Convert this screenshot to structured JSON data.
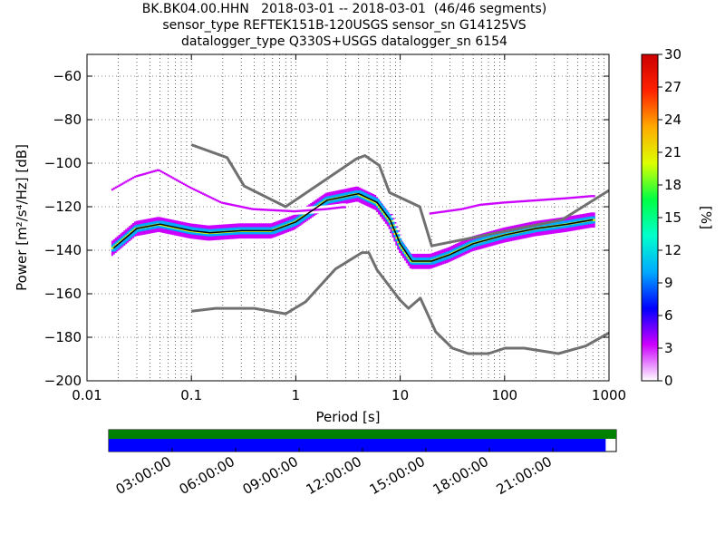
{
  "header": {
    "line1": "BK.BK04.00.HHN   2018-03-01 -- 2018-03-01  (46/46 segments)",
    "line2": "sensor_type REFTEK151B-120USGS sensor_sn G14125VS",
    "line3": "datalogger_type Q330S+USGS datalogger_sn 6154"
  },
  "chart_data": [
    {
      "type": "heatmap",
      "title": "BK.BK04.00.HHN   2018-03-01 -- 2018-03-01  (46/46 segments)",
      "xlabel": "Period [s]",
      "ylabel": "Power [m²/s⁴/Hz] [dB]",
      "xscale": "log",
      "xlim": [
        0.01,
        1000
      ],
      "ylim": [
        -200,
        -50
      ],
      "xticks": [
        0.01,
        0.1,
        1,
        10,
        100,
        1000
      ],
      "xtick_labels": [
        "0.01",
        "0.1",
        "1",
        "10",
        "100",
        "1000"
      ],
      "yticks": [
        -200,
        -180,
        -160,
        -140,
        -120,
        -100,
        -80,
        -60
      ],
      "ytick_labels": [
        "−200",
        "−180",
        "−160",
        "−140",
        "−120",
        "−100",
        "−80",
        "−60"
      ],
      "colorbar": {
        "label": "[%]",
        "range": [
          0,
          30
        ],
        "ticks": [
          0,
          3,
          6,
          9,
          12,
          15,
          18,
          21,
          24,
          27,
          30
        ],
        "tick_labels": [
          "0",
          "3",
          "6",
          "9",
          "12",
          "15",
          "18",
          "21",
          "24",
          "27",
          "30"
        ],
        "colormap": [
          "#ffffff",
          "#cc00ff",
          "#0000ff",
          "#00aaff",
          "#00ffcc",
          "#00ff44",
          "#ddff00",
          "#ffaa00",
          "#ff2200",
          "#cc0000"
        ]
      },
      "series": [
        {
          "name": "NHNM",
          "color": "#707070",
          "x": [
            0.1,
            0.22,
            0.32,
            0.8,
            3.8,
            4.6,
            6.3,
            7.9,
            15.4,
            20,
            354.8,
            1000
          ],
          "y": [
            -91.5,
            -97.4,
            -110.5,
            -120,
            -98,
            -96.5,
            -101,
            -113.5,
            -120,
            -138,
            -126,
            -112.5
          ]
        },
        {
          "name": "NLNM",
          "color": "#707070",
          "x": [
            0.1,
            0.17,
            0.4,
            0.8,
            1.24,
            2.4,
            4.3,
            5,
            6,
            10,
            12,
            15.6,
            21.9,
            31.6,
            45,
            70,
            101,
            154,
            328,
            600,
            1000
          ],
          "y": [
            -168,
            -166.7,
            -166.7,
            -169.2,
            -163.7,
            -148.6,
            -141.1,
            -141.1,
            -149,
            -163,
            -166.7,
            -162,
            -177.5,
            -185,
            -187.5,
            -187.5,
            -185,
            -185,
            -187.5,
            -184,
            -178
          ]
        },
        {
          "name": "mode",
          "color": "#000000",
          "x": [
            0.018,
            0.03,
            0.05,
            0.1,
            0.15,
            0.3,
            0.6,
            1,
            2,
            4,
            6,
            8,
            10,
            13,
            20,
            30,
            50,
            100,
            200,
            400,
            700
          ],
          "y": [
            -139,
            -130,
            -128,
            -131,
            -132,
            -131,
            -131,
            -127,
            -117,
            -114,
            -118,
            -126,
            -137,
            -145,
            -145,
            -142,
            -137,
            -133,
            -130,
            -128,
            -126
          ]
        }
      ],
      "density_bands": [
        {
          "x": [
            0.018,
            0.03,
            0.05,
            0.1,
            0.15,
            0.3,
            0.6,
            1,
            2,
            4,
            6,
            8,
            10,
            13,
            20,
            30,
            50,
            100,
            200,
            400,
            700
          ],
          "y_center": [
            -139,
            -130,
            -128,
            -131,
            -132,
            -131,
            -131,
            -127,
            -117,
            -114,
            -118,
            -126,
            -137,
            -145,
            -145,
            -142,
            -137,
            -133,
            -130,
            -128,
            -126
          ],
          "spread_db": 4,
          "percent": 8
        },
        {
          "x": [
            0.018,
            0.03,
            0.05,
            0.1,
            0.15,
            0.3,
            0.6,
            1,
            2,
            4,
            6,
            8,
            10,
            13,
            20,
            30,
            50,
            100,
            200,
            400,
            700
          ],
          "y_center": [
            -139,
            -130,
            -128,
            -131,
            -132,
            -131,
            -131,
            -127,
            -117,
            -114,
            -118,
            -126,
            -137,
            -145,
            -145,
            -142,
            -137,
            -133,
            -130,
            -128,
            -126
          ],
          "spread_db": 1,
          "percent": 20
        },
        {
          "x": [
            0.018,
            0.03,
            0.05,
            0.1,
            0.2,
            0.4,
            1,
            2,
            3
          ],
          "y_center": [
            -112,
            -106,
            -103,
            -111,
            -118,
            -121,
            -122,
            -121,
            -120
          ],
          "spread_db": 1,
          "percent": 2
        },
        {
          "x": [
            20,
            40,
            60,
            100,
            200,
            400,
            700
          ],
          "y_center": [
            -123,
            -121,
            -119,
            -118,
            -117,
            -116,
            -115
          ],
          "spread_db": 1,
          "percent": 2
        }
      ]
    },
    {
      "type": "bar",
      "title": "",
      "xlabel": "",
      "ylabel": "",
      "x_range_hours": [
        0,
        24
      ],
      "tick_labels": [
        "03:00:00",
        "06:00:00",
        "09:00:00",
        "12:00:00",
        "15:00:00",
        "18:00:00",
        "21:00:00"
      ],
      "tick_hours": [
        3,
        6,
        9,
        12,
        15,
        18,
        21
      ],
      "series": [
        {
          "name": "data available",
          "color": "#008000",
          "start_hour": 0,
          "end_hour": 24
        },
        {
          "name": "used segments",
          "color": "#0000ff",
          "start_hour": 0,
          "end_hour": 23.5
        }
      ]
    }
  ]
}
